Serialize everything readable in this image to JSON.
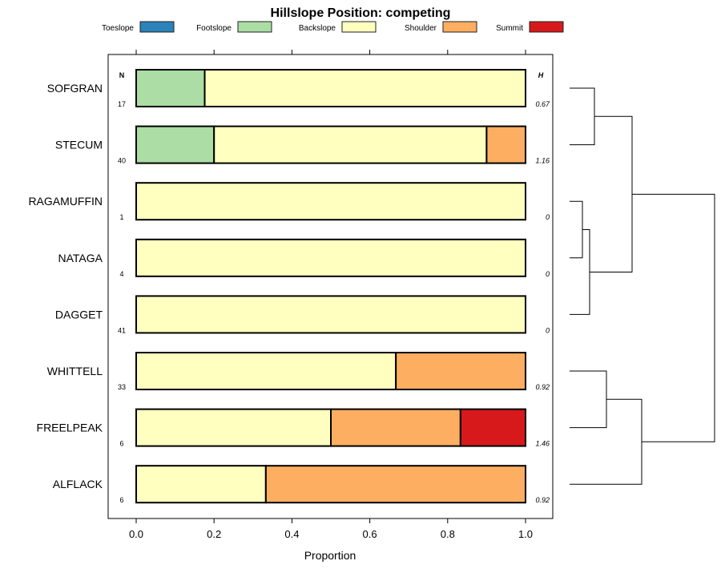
{
  "chart_data": {
    "type": "bar",
    "orientation": "horizontal-stacked",
    "title": "Hillslope Position: competing",
    "xlabel": "Proportion",
    "ylabel": "",
    "xlim": [
      0,
      1
    ],
    "xticks": [
      "0.0",
      "0.2",
      "0.4",
      "0.6",
      "0.8",
      "1.0"
    ],
    "legend": {
      "placement": "top",
      "entries": [
        {
          "name": "Toeslope",
          "color": "#2B83BA"
        },
        {
          "name": "Footslope",
          "color": "#ABDDA4"
        },
        {
          "name": "Backslope",
          "color": "#FFFFBF"
        },
        {
          "name": "Shoulder",
          "color": "#FDAE61"
        },
        {
          "name": "Summit",
          "color": "#D7191C"
        }
      ]
    },
    "n_header": "N",
    "h_header": "H",
    "categories": [
      "SOFGRAN",
      "STECUM",
      "RAGAMUFFIN",
      "NATAGA",
      "DAGGET",
      "WHITTELL",
      "FREELPEAK",
      "ALFLACK"
    ],
    "n": [
      "17",
      "40",
      "1",
      "4",
      "41",
      "33",
      "6",
      "6"
    ],
    "h": [
      "0.67",
      "1.16",
      "0",
      "0",
      "0",
      "0.92",
      "1.46",
      "0.92"
    ],
    "series": [
      {
        "name": "Toeslope",
        "values": [
          0,
          0,
          0,
          0,
          0,
          0,
          0,
          0
        ]
      },
      {
        "name": "Footslope",
        "values": [
          0.176,
          0.2,
          0,
          0,
          0,
          0,
          0,
          0
        ]
      },
      {
        "name": "Backslope",
        "values": [
          0.824,
          0.7,
          1,
          1,
          1,
          0.667,
          0.5,
          0.333
        ]
      },
      {
        "name": "Shoulder",
        "values": [
          0,
          0.1,
          0,
          0,
          0,
          0.333,
          0.333,
          0.667
        ]
      },
      {
        "name": "Summit",
        "values": [
          0,
          0,
          0,
          0,
          0,
          0,
          0.167,
          0
        ]
      }
    ],
    "dendrogram": {
      "merges": [
        [
          "SOFGRAN",
          "STECUM"
        ],
        [
          "RAGAMUFFIN",
          "NATAGA"
        ],
        [
          "RAGAMUFFIN+NATAGA",
          "DAGGET"
        ],
        [
          "SOFGRAN+STECUM",
          "RAGAMUFFIN+NATAGA+DAGGET"
        ],
        [
          "WHITTELL",
          "FREELPEAK"
        ],
        [
          "WHITTELL+FREELPEAK",
          "ALFLACK"
        ],
        [
          "upper",
          "lower"
        ]
      ]
    }
  }
}
